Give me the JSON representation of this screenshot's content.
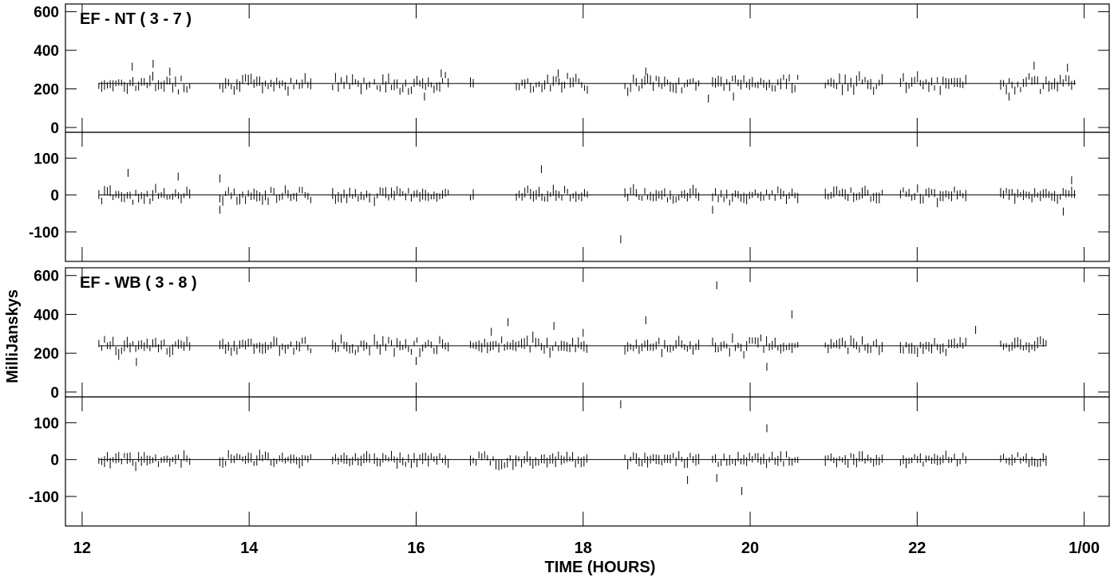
{
  "chart_data": {
    "type": "scatter",
    "ylabel": "MilliJanskys",
    "xlabel": "TIME (HOURS)",
    "x_tick_labels": [
      "12",
      "14",
      "16",
      "18",
      "20",
      "22",
      "1/00"
    ],
    "x_ticks": [
      12,
      14,
      16,
      18,
      20,
      22,
      24
    ],
    "xlim": [
      11.8,
      24.3
    ],
    "baselines": [
      {
        "label": "EF - NT ( 3 - 7 )",
        "amplitude": {
          "ylim": [
            -25,
            640
          ],
          "yticks": [
            0,
            200,
            400,
            600
          ],
          "ytick_labels": [
            "0",
            "200",
            "400",
            "600"
          ],
          "model_level": 228,
          "scatter": 28,
          "outliers": [
            [
              12.6,
              315
            ],
            [
              12.85,
              330
            ],
            [
              13.05,
              290
            ],
            [
              16.1,
              160
            ],
            [
              16.3,
              280
            ],
            [
              17.7,
              280
            ],
            [
              18.75,
              290
            ],
            [
              19.5,
              150
            ],
            [
              19.8,
              160
            ],
            [
              23.1,
              160
            ],
            [
              23.4,
              320
            ],
            [
              23.8,
              310
            ]
          ]
        },
        "phase": {
          "ylim": [
            -180,
            170
          ],
          "yticks": [
            -100,
            0,
            100
          ],
          "ytick_labels": [
            "-100",
            "0",
            "100"
          ],
          "model_level": 0,
          "scatter": 12,
          "outliers": [
            [
              12.55,
              60
            ],
            [
              13.15,
              50
            ],
            [
              13.65,
              45
            ],
            [
              13.65,
              -40
            ],
            [
              17.5,
              70
            ],
            [
              18.45,
              -120
            ],
            [
              19.55,
              -40
            ],
            [
              23.75,
              -45
            ],
            [
              23.85,
              40
            ]
          ]
        }
      },
      {
        "label": "EF - WB ( 3 - 8 )",
        "amplitude": {
          "ylim": [
            -25,
            640
          ],
          "yticks": [
            0,
            200,
            400,
            600
          ],
          "ytick_labels": [
            "0",
            "200",
            "400",
            "600"
          ],
          "model_level": 238,
          "scatter": 26,
          "outliers": [
            [
              12.65,
              155
            ],
            [
              16.0,
              160
            ],
            [
              16.9,
              310
            ],
            [
              17.1,
              360
            ],
            [
              17.65,
              340
            ],
            [
              18.0,
              305
            ],
            [
              18.75,
              370
            ],
            [
              19.6,
              550
            ],
            [
              20.2,
              130
            ],
            [
              20.5,
              400
            ],
            [
              22.7,
              320
            ]
          ]
        },
        "phase": {
          "ylim": [
            -180,
            170
          ],
          "yticks": [
            -100,
            0,
            100
          ],
          "ytick_labels": [
            "-100",
            "0",
            "100"
          ],
          "model_level": 0,
          "scatter": 10,
          "outliers": [
            [
              18.45,
              150
            ],
            [
              19.25,
              -55
            ],
            [
              19.6,
              -50
            ],
            [
              19.9,
              -85
            ],
            [
              20.2,
              85
            ]
          ]
        }
      }
    ],
    "scans": [
      [
        12.2,
        13.3
      ],
      [
        13.65,
        14.75
      ],
      [
        15.0,
        15.45
      ],
      [
        15.5,
        16.4
      ],
      [
        16.65,
        16.7
      ],
      [
        17.2,
        18.05
      ],
      [
        18.5,
        19.4
      ],
      [
        19.55,
        20.6
      ],
      [
        20.9,
        21.6
      ],
      [
        21.8,
        22.6
      ],
      [
        23.0,
        23.9
      ]
    ],
    "scans_wb": [
      [
        12.2,
        13.3
      ],
      [
        13.65,
        14.75
      ],
      [
        15.0,
        15.45
      ],
      [
        15.5,
        16.4
      ],
      [
        16.65,
        18.05
      ],
      [
        18.5,
        19.4
      ],
      [
        19.55,
        20.6
      ],
      [
        20.9,
        21.6
      ],
      [
        21.8,
        22.6
      ],
      [
        23.0,
        23.55
      ]
    ]
  }
}
